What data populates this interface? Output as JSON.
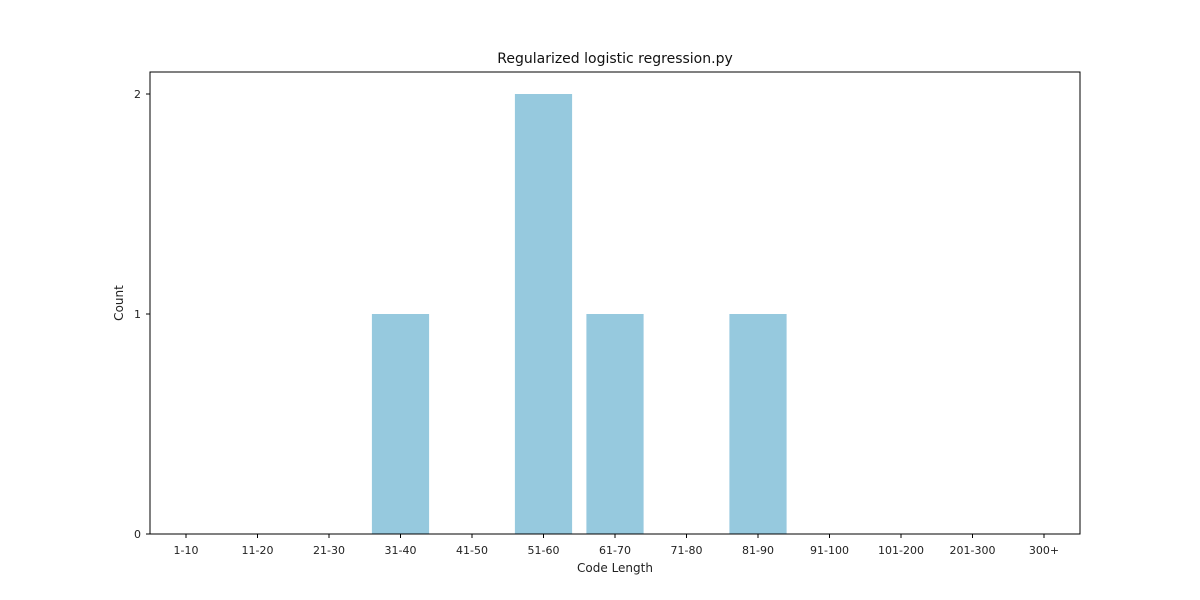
{
  "chart_data": {
    "type": "bar",
    "title": "Regularized logistic regression.py",
    "xlabel": "Code Length",
    "ylabel": "Count",
    "categories": [
      "1-10",
      "11-20",
      "21-30",
      "31-40",
      "41-50",
      "51-60",
      "61-70",
      "71-80",
      "81-90",
      "91-100",
      "101-200",
      "201-300",
      "300+"
    ],
    "values": [
      0,
      0,
      0,
      1,
      0,
      2,
      1,
      0,
      1,
      0,
      0,
      0,
      0
    ],
    "ylim": [
      0,
      2.1
    ],
    "yticks": [
      0,
      1,
      2
    ],
    "bar_color": "#96c9de",
    "grid": false,
    "legend": false
  }
}
